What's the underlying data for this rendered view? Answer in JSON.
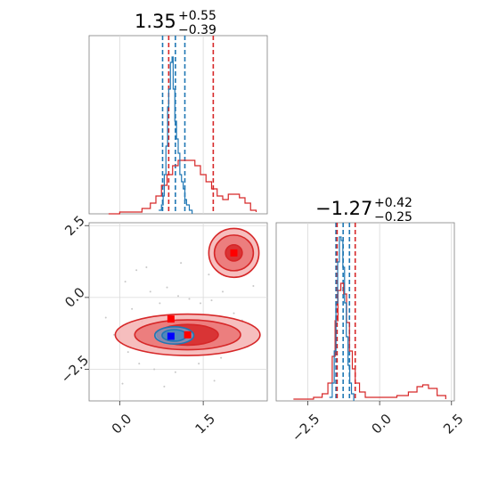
{
  "chart_data": {
    "type": "corner",
    "series": [
      {
        "name": "",
        "color": "#1f77b4"
      },
      {
        "name": "",
        "color": "#d62728"
      }
    ],
    "panels": [
      {
        "id": "hist-x",
        "type": "histogram",
        "title": {
          "value": "1.35",
          "plus": "+0.55",
          "minus": "−0.39"
        },
        "xlim": [
          -0.55,
          2.65
        ],
        "quantiles": {
          "blue": [
            0.77,
            1.0,
            1.17
          ],
          "red": [
            0.88,
            1.68
          ]
        },
        "blue_hist": {
          "x": [
            0.7,
            0.75,
            0.78,
            0.8,
            0.83,
            0.86,
            0.88,
            0.91,
            0.94,
            0.96,
            0.99,
            1.02,
            1.05,
            1.08,
            1.11,
            1.14,
            1.17,
            1.2,
            1.25,
            1.3
          ],
          "y": [
            0.02,
            0.05,
            0.1,
            0.22,
            0.38,
            0.6,
            0.7,
            0.85,
            0.88,
            0.7,
            0.52,
            0.42,
            0.34,
            0.22,
            0.18,
            0.14,
            0.08,
            0.05,
            0.02,
            0.0
          ]
        },
        "red_hist": {
          "x": [
            -0.2,
            0.0,
            0.2,
            0.4,
            0.55,
            0.65,
            0.75,
            0.85,
            0.95,
            1.05,
            1.15,
            1.25,
            1.35,
            1.45,
            1.55,
            1.65,
            1.75,
            1.85,
            1.95,
            2.05,
            2.15,
            2.25,
            2.35,
            2.45
          ],
          "y": [
            0.0,
            0.01,
            0.01,
            0.03,
            0.06,
            0.1,
            0.16,
            0.22,
            0.27,
            0.3,
            0.3,
            0.3,
            0.27,
            0.22,
            0.18,
            0.14,
            0.1,
            0.08,
            0.11,
            0.11,
            0.09,
            0.06,
            0.02,
            0.01
          ]
        }
      },
      {
        "id": "scatter-xy",
        "type": "2d-contour",
        "xlim": [
          -0.55,
          2.65
        ],
        "ylim": [
          -3.6,
          2.6
        ],
        "xticks": [
          "0.0",
          "1.5"
        ],
        "xtick_values": [
          0.0,
          1.5
        ],
        "yticks": [
          "2.5",
          "0.0",
          "−2.5"
        ],
        "ytick_values": [
          2.5,
          0.0,
          -2.5
        ],
        "red_regions": [
          {
            "cx": 1.22,
            "cy": -1.3,
            "rx": [
              1.3,
              0.95,
              0.55
            ],
            "ry": [
              0.72,
              0.52,
              0.36
            ]
          },
          {
            "cx": 2.05,
            "cy": 1.55,
            "rx": [
              0.45,
              0.35,
              0.15
            ],
            "ry": [
              0.85,
              0.62,
              0.28
            ]
          }
        ],
        "blue_regions": [
          {
            "cx": 0.98,
            "cy": -1.32,
            "rx": [
              0.35,
              0.22
            ],
            "ry": [
              0.3,
              0.2
            ]
          }
        ],
        "red_markers": [
          [
            0.92,
            -0.75
          ],
          [
            1.22,
            -1.3
          ],
          [
            2.05,
            1.55
          ]
        ],
        "blue_markers": [
          [
            0.92,
            -1.35
          ]
        ],
        "scatter_points": [
          [
            -0.25,
            -0.7
          ],
          [
            0.1,
            0.55
          ],
          [
            0.22,
            -0.4
          ],
          [
            0.4,
            -0.85
          ],
          [
            0.55,
            0.2
          ],
          [
            0.72,
            -0.2
          ],
          [
            0.85,
            0.35
          ],
          [
            1.05,
            0.05
          ],
          [
            1.25,
            -0.05
          ],
          [
            1.45,
            -0.2
          ],
          [
            1.65,
            -0.1
          ],
          [
            1.85,
            0.2
          ],
          [
            2.05,
            -0.55
          ],
          [
            2.2,
            -0.8
          ],
          [
            0.35,
            -2.3
          ],
          [
            0.62,
            -2.5
          ],
          [
            1.0,
            -2.6
          ],
          [
            1.42,
            -2.3
          ],
          [
            1.82,
            -2.1
          ],
          [
            0.15,
            -1.9
          ],
          [
            -0.1,
            -1.3
          ],
          [
            2.3,
            -1.7
          ],
          [
            0.48,
            1.05
          ],
          [
            1.1,
            1.2
          ],
          [
            1.6,
            0.8
          ],
          [
            0.05,
            -3.0
          ],
          [
            0.8,
            -3.1
          ],
          [
            1.7,
            -2.9
          ],
          [
            2.4,
            0.4
          ],
          [
            0.3,
            0.95
          ]
        ]
      },
      {
        "id": "hist-y",
        "type": "histogram",
        "title": {
          "value": "−1.27",
          "plus": "+0.42",
          "minus": "−0.25"
        },
        "xlim": [
          -3.6,
          2.6
        ],
        "xticks": [
          "−2.5",
          "0.0",
          "2.5"
        ],
        "xtick_values": [
          -2.5,
          0.0,
          2.5
        ],
        "quantiles": {
          "blue": [
            -1.52,
            -1.27,
            -1.05
          ],
          "red": [
            -1.48,
            -0.85
          ]
        },
        "blue_hist": {
          "x": [
            -1.75,
            -1.65,
            -1.58,
            -1.52,
            -1.46,
            -1.4,
            -1.34,
            -1.28,
            -1.22,
            -1.16,
            -1.1,
            -1.04,
            -0.98,
            -0.9
          ],
          "y": [
            0.02,
            0.1,
            0.28,
            0.55,
            0.78,
            0.92,
            0.9,
            0.75,
            0.55,
            0.36,
            0.2,
            0.1,
            0.04,
            0.0
          ]
        },
        "red_hist": {
          "x": [
            -3.0,
            -2.6,
            -2.3,
            -2.0,
            -1.8,
            -1.65,
            -1.55,
            -1.45,
            -1.35,
            -1.25,
            -1.15,
            -1.05,
            -0.95,
            -0.85,
            -0.7,
            -0.5,
            -0.2,
            0.2,
            0.6,
            1.0,
            1.3,
            1.5,
            1.7,
            2.0,
            2.3
          ],
          "y": [
            0.01,
            0.01,
            0.02,
            0.04,
            0.1,
            0.25,
            0.45,
            0.62,
            0.66,
            0.6,
            0.44,
            0.28,
            0.18,
            0.1,
            0.05,
            0.02,
            0.02,
            0.02,
            0.03,
            0.05,
            0.08,
            0.09,
            0.07,
            0.03,
            0.01
          ]
        }
      }
    ]
  }
}
